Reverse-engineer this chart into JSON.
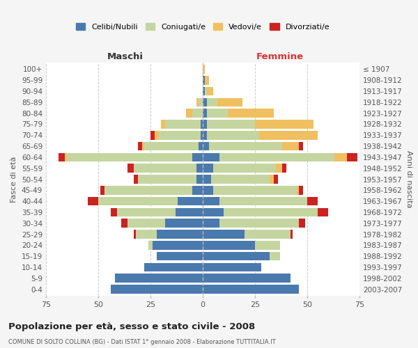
{
  "age_groups": [
    "0-4",
    "5-9",
    "10-14",
    "15-19",
    "20-24",
    "25-29",
    "30-34",
    "35-39",
    "40-44",
    "45-49",
    "50-54",
    "55-59",
    "60-64",
    "65-69",
    "70-74",
    "75-79",
    "80-84",
    "85-89",
    "90-94",
    "95-99",
    "100+"
  ],
  "birth_years": [
    "2003-2007",
    "1998-2002",
    "1993-1997",
    "1988-1992",
    "1983-1987",
    "1978-1982",
    "1973-1977",
    "1968-1972",
    "1963-1967",
    "1958-1962",
    "1953-1957",
    "1948-1952",
    "1943-1947",
    "1938-1942",
    "1933-1937",
    "1928-1932",
    "1923-1927",
    "1918-1922",
    "1913-1917",
    "1908-1912",
    "≤ 1907"
  ],
  "colors": {
    "celibi": "#4a7aad",
    "coniugati": "#c5d5a0",
    "vedovi": "#f0c060",
    "divorziati": "#cc2222"
  },
  "males": {
    "celibi": [
      44,
      42,
      28,
      22,
      24,
      22,
      18,
      13,
      12,
      5,
      3,
      3,
      5,
      2,
      1,
      1,
      0,
      0,
      0,
      0,
      0
    ],
    "coniugati": [
      0,
      0,
      0,
      0,
      2,
      10,
      18,
      28,
      38,
      42,
      28,
      30,
      60,
      26,
      20,
      17,
      5,
      2,
      0,
      0,
      0
    ],
    "vedovi": [
      0,
      0,
      0,
      0,
      0,
      0,
      0,
      0,
      0,
      0,
      0,
      0,
      1,
      1,
      2,
      2,
      3,
      1,
      0,
      0,
      0
    ],
    "divorziati": [
      0,
      0,
      0,
      0,
      0,
      1,
      3,
      3,
      5,
      2,
      2,
      3,
      3,
      2,
      2,
      0,
      0,
      0,
      0,
      0,
      0
    ]
  },
  "females": {
    "celibi": [
      46,
      42,
      28,
      32,
      25,
      20,
      8,
      10,
      8,
      5,
      4,
      5,
      8,
      3,
      2,
      2,
      2,
      2,
      1,
      1,
      0
    ],
    "coniugati": [
      0,
      0,
      0,
      5,
      12,
      22,
      38,
      45,
      42,
      40,
      28,
      30,
      55,
      35,
      25,
      23,
      10,
      5,
      1,
      0,
      0
    ],
    "vedovi": [
      0,
      0,
      0,
      0,
      0,
      0,
      0,
      0,
      0,
      1,
      2,
      3,
      6,
      8,
      28,
      28,
      22,
      12,
      3,
      2,
      1
    ],
    "divorziati": [
      0,
      0,
      0,
      0,
      0,
      1,
      3,
      5,
      5,
      2,
      2,
      2,
      5,
      2,
      0,
      0,
      0,
      0,
      0,
      0,
      0
    ]
  },
  "xlim": 75,
  "title": "Popolazione per età, sesso e stato civile - 2008",
  "subtitle": "COMUNE DI SOLTO COLLINA (BG) - Dati ISTAT 1° gennaio 2008 - Elaborazione TUTTITALIA.IT",
  "xlabel_left": "Maschi",
  "xlabel_right": "Femmine",
  "ylabel_left": "Fasce di età",
  "ylabel_right": "Anni di nascita",
  "legend_labels": [
    "Celibi/Nubili",
    "Coniugati/e",
    "Vedovi/e",
    "Divorziati/e"
  ],
  "background_color": "#f5f5f5",
  "plot_bg": "#ffffff"
}
